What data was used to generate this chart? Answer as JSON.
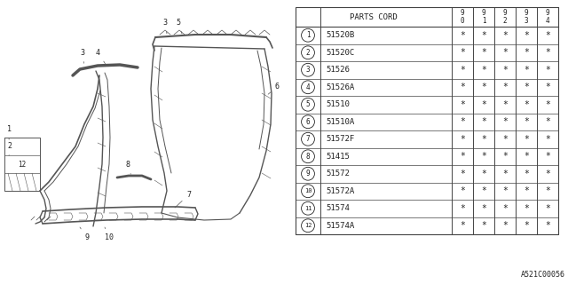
{
  "bg_color": "#ffffff",
  "diagram_label": "A521C00056",
  "table": {
    "header_col": "PARTS CORD",
    "year_cols": [
      "9\n0",
      "9\n1",
      "9\n2",
      "9\n3",
      "9\n4"
    ],
    "rows": [
      {
        "num": 1,
        "part": "51520B",
        "vals": [
          "*",
          "*",
          "*",
          "*",
          "*"
        ]
      },
      {
        "num": 2,
        "part": "51520C",
        "vals": [
          "*",
          "*",
          "*",
          "*",
          "*"
        ]
      },
      {
        "num": 3,
        "part": "51526",
        "vals": [
          "*",
          "*",
          "*",
          "*",
          "*"
        ]
      },
      {
        "num": 4,
        "part": "51526A",
        "vals": [
          "*",
          "*",
          "*",
          "*",
          "*"
        ]
      },
      {
        "num": 5,
        "part": "51510",
        "vals": [
          "*",
          "*",
          "*",
          "*",
          "*"
        ]
      },
      {
        "num": 6,
        "part": "51510A",
        "vals": [
          "*",
          "*",
          "*",
          "*",
          "*"
        ]
      },
      {
        "num": 7,
        "part": "51572F",
        "vals": [
          "*",
          "*",
          "*",
          "*",
          "*"
        ]
      },
      {
        "num": 8,
        "part": "51415",
        "vals": [
          "*",
          "*",
          "*",
          "*",
          "*"
        ]
      },
      {
        "num": 9,
        "part": "51572",
        "vals": [
          "*",
          "*",
          "*",
          "*",
          "*"
        ]
      },
      {
        "num": 10,
        "part": "51572A",
        "vals": [
          "*",
          "*",
          "*",
          "*",
          "*"
        ]
      },
      {
        "num": 11,
        "part": "51574",
        "vals": [
          "*",
          "*",
          "*",
          "*",
          "*"
        ]
      },
      {
        "num": 12,
        "part": "51574A",
        "vals": [
          "*",
          "*",
          "*",
          "*",
          "*"
        ]
      }
    ]
  },
  "line_color": "#444444",
  "text_color": "#222222",
  "diagram_color": "#555555"
}
